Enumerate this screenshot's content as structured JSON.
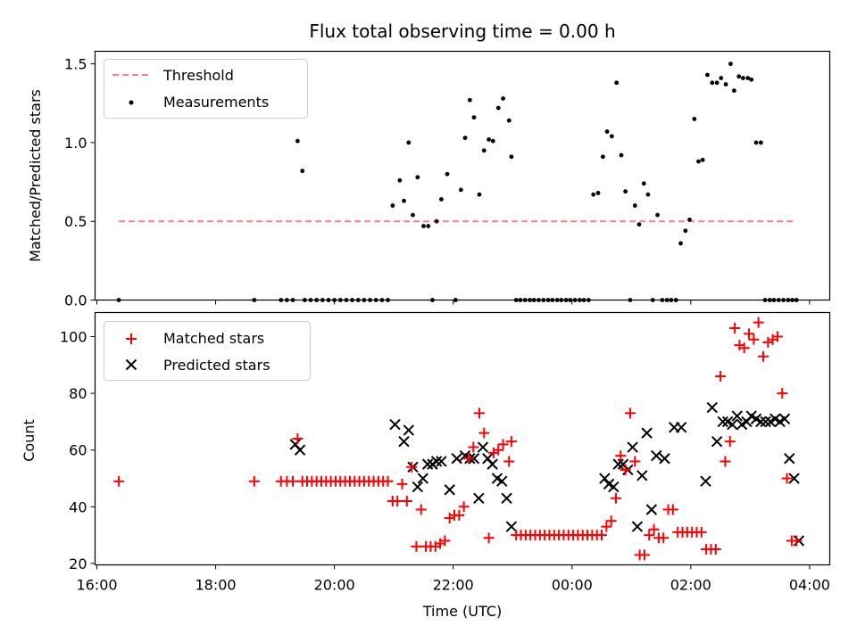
{
  "title": "Flux total observing time = 0.00 h",
  "colors": {
    "threshold": "#ff8080",
    "measurements": "#000000",
    "matched": "#ff0000",
    "predicted": "#000000"
  },
  "chart_data": [
    {
      "type": "scatter",
      "panel": "top",
      "ylabel": "Matched/Predicted stars",
      "xlabel": "",
      "xlim_hours": [
        15.97,
        28.34
      ],
      "ylim": [
        0,
        1.58
      ],
      "yticks": [
        0,
        0.5,
        1.0,
        1.5
      ],
      "ytick_labels": [
        "0.0",
        "0.5",
        "1.0",
        "1.5"
      ],
      "legend_position": "upper-left",
      "legend": [
        "Threshold",
        "Measurements"
      ],
      "threshold": {
        "name": "Threshold",
        "value": 0.5,
        "x_range_hours": [
          16.37,
          27.75
        ],
        "style": "dashed"
      },
      "series": [
        {
          "name": "Measurements",
          "x_hours": [
            16.37,
            18.65,
            19.1,
            19.2,
            19.3,
            19.38,
            19.46,
            19.5,
            19.6,
            19.7,
            19.8,
            19.9,
            20.0,
            20.1,
            20.2,
            20.3,
            20.4,
            20.5,
            20.6,
            20.7,
            20.8,
            20.9,
            20.98,
            21.1,
            21.17,
            21.25,
            21.32,
            21.4,
            21.5,
            21.58,
            21.65,
            21.72,
            21.8,
            21.9,
            22.04,
            22.13,
            22.2,
            22.28,
            22.35,
            22.44,
            22.52,
            22.6,
            22.67,
            22.76,
            22.84,
            22.94,
            22.98,
            23.06,
            23.13,
            23.21,
            23.29,
            23.36,
            23.44,
            23.52,
            23.6,
            23.67,
            23.75,
            23.82,
            23.9,
            23.97,
            24.05,
            24.13,
            24.2,
            24.28,
            24.36,
            24.44,
            24.52,
            24.59,
            24.67,
            24.75,
            24.83,
            24.9,
            24.98,
            25.06,
            25.13,
            25.21,
            25.28,
            25.36,
            25.44,
            25.52,
            25.6,
            25.67,
            25.75,
            25.83,
            25.91,
            25.98,
            26.06,
            26.13,
            26.2,
            26.28,
            26.36,
            26.44,
            26.51,
            26.59,
            26.67,
            26.73,
            26.81,
            26.88,
            26.96,
            27.02,
            27.1,
            27.18,
            27.25,
            27.33,
            27.4,
            27.48,
            27.56,
            27.64,
            27.71,
            27.78
          ],
          "values": [
            0.0,
            0.0,
            0.0,
            0.0,
            0.0,
            1.01,
            0.82,
            0.0,
            0.0,
            0.0,
            0.0,
            0.0,
            0.0,
            0.0,
            0.0,
            0.0,
            0.0,
            0.0,
            0.0,
            0.0,
            0.0,
            0.0,
            0.6,
            0.76,
            0.63,
            1.0,
            0.54,
            0.78,
            0.47,
            0.47,
            0.0,
            0.5,
            0.64,
            0.8,
            0.0,
            0.7,
            1.03,
            1.27,
            1.16,
            0.67,
            0.95,
            1.02,
            1.01,
            1.22,
            1.28,
            1.14,
            0.91,
            0.0,
            0.0,
            0.0,
            0.0,
            0.0,
            0.0,
            0.0,
            0.0,
            0.0,
            0.0,
            0.0,
            0.0,
            0.0,
            0.0,
            0.0,
            0.0,
            0.0,
            0.67,
            0.68,
            0.91,
            1.07,
            1.04,
            1.38,
            0.92,
            0.69,
            0.0,
            0.6,
            0.48,
            0.74,
            0.67,
            0.0,
            0.54,
            0.0,
            0.0,
            0.0,
            0.0,
            0.36,
            0.44,
            0.51,
            1.15,
            0.88,
            0.89,
            1.43,
            1.38,
            1.38,
            1.41,
            1.37,
            1.5,
            1.33,
            1.42,
            1.41,
            1.41,
            1.4,
            1.0,
            1.0,
            0.0,
            0.0,
            0.0,
            0.0,
            0.0,
            0.0,
            0.0,
            0.0
          ]
        }
      ]
    },
    {
      "type": "scatter",
      "panel": "bottom",
      "xlabel": "Time (UTC)",
      "ylabel": "Count",
      "xlim_hours": [
        15.97,
        28.34
      ],
      "ylim": [
        19.5,
        108.5
      ],
      "yticks": [
        20,
        40,
        60,
        80,
        100
      ],
      "xtick_hours": [
        16,
        18,
        20,
        22,
        24,
        26,
        28
      ],
      "xtick_labels": [
        "16:00",
        "18:00",
        "20:00",
        "22:00",
        "00:00",
        "02:00",
        "04:00"
      ],
      "legend_position": "upper-left",
      "legend": [
        "Matched stars",
        "Predicted stars"
      ],
      "series": [
        {
          "name": "Matched stars",
          "marker": "plus",
          "x_hours": [
            16.37,
            18.65,
            19.1,
            19.2,
            19.3,
            19.38,
            19.46,
            19.54,
            19.62,
            19.7,
            19.78,
            19.86,
            19.94,
            20.02,
            20.1,
            20.18,
            20.26,
            20.34,
            20.42,
            20.5,
            20.58,
            20.66,
            20.74,
            20.82,
            20.9,
            20.98,
            21.06,
            21.14,
            21.22,
            21.3,
            21.38,
            21.46,
            21.54,
            21.62,
            21.7,
            21.78,
            21.86,
            21.94,
            22.02,
            22.1,
            22.18,
            22.26,
            22.34,
            22.44,
            22.52,
            22.6,
            22.68,
            22.76,
            22.84,
            22.94,
            22.98,
            23.06,
            23.14,
            23.22,
            23.3,
            23.38,
            23.46,
            23.54,
            23.62,
            23.7,
            23.78,
            23.86,
            23.94,
            24.02,
            24.1,
            24.18,
            24.26,
            24.34,
            24.42,
            24.5,
            24.58,
            24.66,
            24.74,
            24.82,
            24.9,
            24.98,
            25.06,
            25.14,
            25.22,
            25.3,
            25.38,
            25.46,
            25.54,
            25.62,
            25.7,
            25.78,
            25.86,
            25.94,
            26.02,
            26.1,
            26.18,
            26.26,
            26.34,
            26.42,
            26.5,
            26.58,
            26.66,
            26.74,
            26.82,
            26.9,
            26.98,
            27.06,
            27.14,
            27.22,
            27.3,
            27.38,
            27.46,
            27.54,
            27.62,
            27.7,
            27.78
          ],
          "values": [
            49,
            49,
            49,
            49,
            49,
            64,
            49,
            49,
            49,
            49,
            49,
            49,
            49,
            49,
            49,
            49,
            49,
            49,
            49,
            49,
            49,
            49,
            49,
            49,
            49,
            42,
            42,
            48,
            42,
            54,
            26,
            39,
            26,
            26,
            26,
            27,
            28,
            36,
            37,
            37,
            40,
            57,
            61,
            73,
            66,
            29,
            59,
            60,
            62,
            56,
            63,
            30,
            30,
            30,
            30,
            30,
            30,
            30,
            30,
            30,
            30,
            30,
            30,
            30,
            30,
            30,
            30,
            30,
            30,
            30,
            33,
            35,
            43,
            58,
            53,
            73,
            56,
            23,
            23,
            30,
            32,
            29,
            29,
            39,
            39,
            31,
            31,
            31,
            31,
            31,
            31,
            25,
            25,
            25,
            86,
            56,
            63,
            103,
            97,
            96,
            101,
            99,
            105,
            93,
            98,
            99,
            100,
            80,
            50,
            28,
            28
          ]
        },
        {
          "name": "Predicted stars",
          "marker": "x",
          "x_hours": [
            19.34,
            19.42,
            21.02,
            21.17,
            21.25,
            21.32,
            21.4,
            21.49,
            21.57,
            21.65,
            21.72,
            21.8,
            21.94,
            22.06,
            22.2,
            22.28,
            22.35,
            22.43,
            22.5,
            22.58,
            22.66,
            22.74,
            22.82,
            22.9,
            22.98,
            24.55,
            24.62,
            24.7,
            24.78,
            24.86,
            24.94,
            25.02,
            25.1,
            25.18,
            25.26,
            25.34,
            25.42,
            25.56,
            25.72,
            25.84,
            26.25,
            26.36,
            26.44,
            26.54,
            26.62,
            26.7,
            26.78,
            26.86,
            26.94,
            27.02,
            27.1,
            27.18,
            27.26,
            27.34,
            27.42,
            27.5,
            27.58,
            27.66,
            27.74,
            27.82
          ],
          "values": [
            62,
            60,
            69,
            63,
            67,
            54,
            47,
            50,
            55,
            55,
            56,
            56,
            46,
            57,
            58,
            57,
            57,
            43,
            61,
            57,
            55,
            50,
            49,
            43,
            33,
            50,
            48,
            47,
            55,
            55,
            53,
            61,
            33,
            51,
            66,
            39,
            58,
            57,
            68,
            68,
            49,
            75,
            63,
            70,
            70,
            69,
            72,
            69,
            70,
            72,
            71,
            70,
            70,
            70,
            71,
            70,
            71,
            57,
            50,
            28
          ]
        }
      ]
    }
  ]
}
